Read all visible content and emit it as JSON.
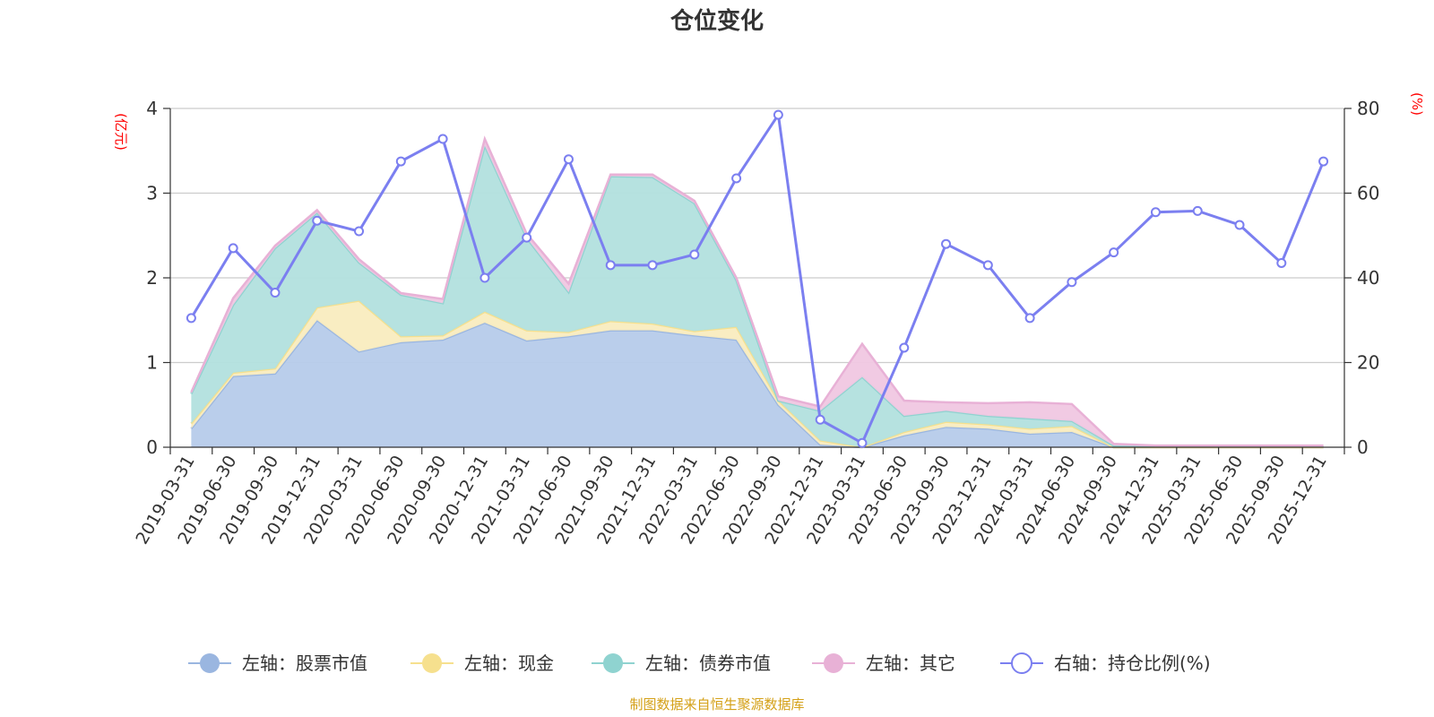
{
  "chart_data": {
    "type": "area",
    "title": "仓位变化",
    "left_axis_unit": "(亿元)",
    "right_axis_unit": "(%)",
    "left_ylim": [
      0,
      4
    ],
    "left_ticks": [
      "0",
      "1",
      "2",
      "3",
      "4"
    ],
    "right_ylim": [
      0,
      80
    ],
    "right_ticks": [
      "0",
      "20",
      "40",
      "60",
      "80"
    ],
    "categories": [
      "2019-03-31",
      "2019-06-30",
      "2019-09-30",
      "2019-12-31",
      "2020-03-31",
      "2020-06-30",
      "2020-09-30",
      "2020-12-31",
      "2021-03-31",
      "2021-06-30",
      "2021-09-30",
      "2021-12-31",
      "2022-03-31",
      "2022-06-30",
      "2022-09-30",
      "2022-12-31",
      "2023-03-31",
      "2023-06-30",
      "2023-09-30",
      "2023-12-31",
      "2024-03-31",
      "2024-06-30",
      "2024-09-30",
      "2024-12-31",
      "2025-03-31",
      "2025-06-30",
      "2025-09-30",
      "2025-12-31"
    ],
    "series": [
      {
        "name": "左轴：股票市值",
        "axis": "left",
        "kind": "stacked-area",
        "color": "#9ab6e0",
        "fill": "#b6cbea",
        "values": [
          0.22,
          0.84,
          0.87,
          1.5,
          1.13,
          1.24,
          1.27,
          1.47,
          1.26,
          1.31,
          1.38,
          1.38,
          1.32,
          1.27,
          0.5,
          0.03,
          0.0,
          0.14,
          0.24,
          0.22,
          0.16,
          0.18,
          0.0,
          0.0,
          0.0,
          0.0,
          0.0,
          0.0
        ]
      },
      {
        "name": "左轴：现金",
        "axis": "left",
        "kind": "stacked-area",
        "color": "#f6e08e",
        "fill": "#f9ecbf",
        "values": [
          0.06,
          0.04,
          0.06,
          0.15,
          0.6,
          0.07,
          0.05,
          0.13,
          0.12,
          0.05,
          0.11,
          0.08,
          0.05,
          0.15,
          0.05,
          0.05,
          0.0,
          0.04,
          0.06,
          0.05,
          0.06,
          0.07,
          0.0,
          0.0,
          0.0,
          0.0,
          0.0,
          0.0
        ]
      },
      {
        "name": "左轴：债券市值",
        "axis": "left",
        "kind": "stacked-area",
        "color": "#8fd3d0",
        "fill": "#b2e0de",
        "values": [
          0.35,
          0.8,
          1.42,
          1.12,
          0.45,
          0.49,
          0.38,
          1.96,
          1.09,
          0.47,
          1.71,
          1.73,
          1.51,
          0.55,
          0.0,
          0.35,
          0.83,
          0.19,
          0.13,
          0.1,
          0.12,
          0.06,
          0.02,
          0.01,
          0.01,
          0.01,
          0.01,
          0.01
        ]
      },
      {
        "name": "左轴：其它",
        "axis": "left",
        "kind": "stacked-area",
        "color": "#e8b1d6",
        "fill": "#f0c7e1",
        "values": [
          0.02,
          0.08,
          0.03,
          0.03,
          0.04,
          0.02,
          0.05,
          0.08,
          0.05,
          0.1,
          0.02,
          0.03,
          0.03,
          0.03,
          0.05,
          0.05,
          0.39,
          0.18,
          0.1,
          0.15,
          0.19,
          0.2,
          0.02,
          0.01,
          0.01,
          0.01,
          0.01,
          0.01
        ]
      },
      {
        "name": "右轴：持仓比例(%)",
        "axis": "right",
        "kind": "line",
        "color": "#7b7ff0",
        "values": [
          30.5,
          47,
          36.5,
          53.5,
          51,
          67.5,
          72.8,
          40,
          49.5,
          68,
          43,
          43,
          45.5,
          63.5,
          78.5,
          6.5,
          1,
          23.5,
          48,
          43,
          30.5,
          39,
          46,
          55.5,
          55.8,
          52.5,
          43.5,
          67.5
        ]
      }
    ],
    "legend_position": "bottom-center",
    "grid": true
  },
  "footer": {
    "source_text": "制图数据来自恒生聚源数据库"
  }
}
